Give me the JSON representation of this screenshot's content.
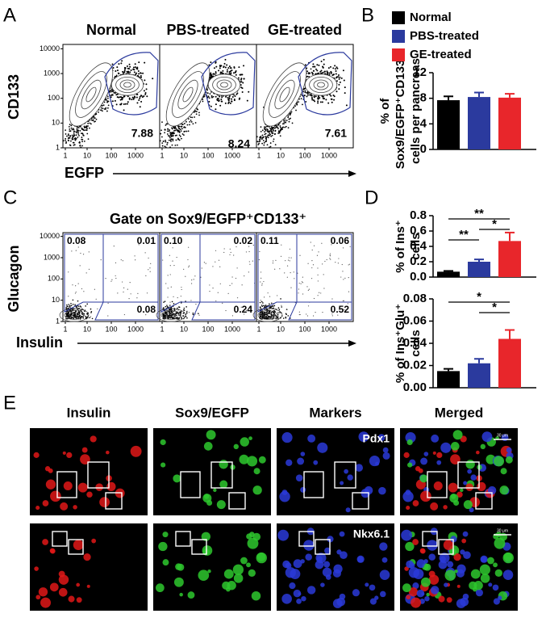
{
  "panel_labels": {
    "a": "A",
    "b": "B",
    "c": "C",
    "d": "D",
    "e": "E"
  },
  "panel_a": {
    "conditions": [
      "Normal",
      "PBS-treated",
      "GE-treated"
    ],
    "y_label": "CD133",
    "x_label": "EGFP",
    "log": true,
    "ylim": [
      1,
      15000
    ],
    "xlim": [
      1,
      10000
    ],
    "yticks": [
      10000,
      1000,
      100,
      10,
      1
    ],
    "xticks": [
      1,
      10,
      100,
      1000
    ],
    "gate_values": [
      7.88,
      8.24,
      7.61
    ]
  },
  "panel_c": {
    "title": "Gate on Sox9/EGFP⁺CD133⁺",
    "y_label": "Glucagon",
    "x_label": "Insulin",
    "log": true,
    "ylim": [
      1,
      15000
    ],
    "xlim": [
      1,
      10000
    ],
    "yticks": [
      10000,
      1000,
      100,
      10,
      1
    ],
    "xticks": [
      1,
      10,
      100,
      1000
    ],
    "quadrants": [
      {
        "upper_left": 0.08,
        "upper_right": 0.01,
        "lower_right": 0.08
      },
      {
        "upper_left": {
          "value": 0.1,
          "label": "0.10"
        },
        "upper_right": 0.02,
        "lower_right": 0.24
      },
      {
        "upper_left": 0.11,
        "upper_right": 0.06,
        "lower_right": 0.52
      }
    ]
  },
  "chart_data": [
    {
      "type": "bar",
      "ylabel": [
        "% of",
        "Sox9/EGFP⁺CD133⁺",
        "cells per pancreas"
      ],
      "ylim": [
        0,
        12
      ],
      "yticks": [
        0,
        4,
        8,
        12
      ],
      "legend": "top-right",
      "series": [
        {
          "name": "Normal",
          "color": "#000000",
          "values": [
            7.7
          ],
          "errors": [
            0.6
          ]
        },
        {
          "name": "PBS-treated",
          "color": "#2b3a9e",
          "values": [
            8.2
          ],
          "errors": [
            0.7
          ]
        },
        {
          "name": "GE-treated",
          "color": "#e8262b",
          "values": [
            8.1
          ],
          "errors": [
            0.6
          ]
        }
      ]
    },
    {
      "type": "bar",
      "ylabel": [
        "% of Ins⁺",
        "cells"
      ],
      "ylim": [
        0,
        0.8
      ],
      "yticks": [
        {
          "value": 0,
          "label": "0.0"
        },
        0.2,
        0.4,
        0.6,
        0.8
      ],
      "values": [
        0.07,
        0.2,
        0.47
      ],
      "errors": [
        0.01,
        0.03,
        0.11
      ],
      "colors": [
        "#000000",
        "#2b3a9e",
        "#e8262b"
      ],
      "significance": [
        "**",
        "**",
        "*"
      ]
    },
    {
      "type": "bar",
      "ylabel": [
        "% of Ins⁺Glu⁺",
        "cells"
      ],
      "ylim": [
        0,
        0.08
      ],
      "yticks": [
        {
          "value": 0,
          "label": "0.00"
        },
        0.02,
        0.04,
        0.06,
        0.08
      ],
      "values": [
        0.015,
        0.022,
        0.044
      ],
      "errors": [
        0.002,
        0.004,
        0.008
      ],
      "colors": [
        "#000000",
        "#2b3a9e",
        "#e8262b"
      ],
      "significance": [
        "*",
        "*"
      ]
    }
  ],
  "panel_e": {
    "columns": [
      "Insulin",
      "Sox9/EGFP",
      "Markers",
      "Merged"
    ],
    "markers": [
      "Pdx1",
      "Nkx6.1"
    ],
    "scale_bar": "30 μm"
  }
}
